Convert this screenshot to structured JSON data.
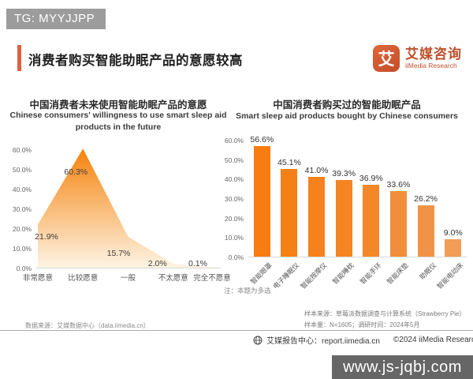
{
  "tag": {
    "label": "TG: MYYJJPP"
  },
  "header": {
    "title": "消费者购买智能助眠产品的意愿较高",
    "accent_color": "#dd6142"
  },
  "brand": {
    "icon_glyph": "艾",
    "name_cn": "艾媒咨询",
    "name_en": "iiMedia Research",
    "color": "#bf4f2c"
  },
  "chart_data": [
    {
      "type": "area",
      "title_cn": "中国消费者未来使用智能助眠产品的意愿",
      "title_en": "Chinese consumers' willingness to use smart sleep aid products in the future",
      "categories": [
        "非常愿意",
        "比较愿意",
        "一般",
        "不太愿意",
        "完全不愿意"
      ],
      "values": [
        21.9,
        60.3,
        15.7,
        2.0,
        0.1
      ],
      "value_labels": [
        "21.9%",
        "60.3%",
        "15.7%",
        "2.0%",
        "0.1%"
      ],
      "y_ticks": [
        "60.0%",
        "50.0%",
        "40.0%",
        "30.0%",
        "20.0%",
        "10.0%",
        "0.0%"
      ],
      "ylim": [
        0,
        60
      ],
      "grid": false,
      "legend": "none",
      "area_gradient_top": "#f5820c",
      "area_gradient_bottom": "#fdf4e3"
    },
    {
      "type": "bar",
      "title_cn": "中国消费者购买过的智能助眠产品",
      "title_en": "Smart sleep aid products bought by Chinese consumers",
      "categories": [
        "智能眼罩",
        "电子睡眠仪",
        "智能按摩仪",
        "智能睡枕",
        "智能手环",
        "智能床垫",
        "助眠仪",
        "智能电动床"
      ],
      "values": [
        56.6,
        45.1,
        41.0,
        39.3,
        36.9,
        33.6,
        26.2,
        9.0
      ],
      "value_labels": [
        "56.6%",
        "45.1%",
        "41.0%",
        "39.3%",
        "36.9%",
        "33.6%",
        "26.2%",
        "9.0%"
      ],
      "y_ticks": [
        "60.0%",
        "50.0%",
        "40.0%",
        "30.0%",
        "20.0%",
        "10.0%",
        "0.0%"
      ],
      "ylim": [
        0,
        60
      ],
      "grid": false,
      "legend": "none",
      "bar_colors": [
        "#f87c10",
        "#f67f16",
        "#f5821c",
        "#f58522",
        "#f48829",
        "#f18e3b",
        "#f19346",
        "#f39d56"
      ],
      "note": "注：本题为多选"
    }
  ],
  "footnotes": {
    "data_source": "数据来源：艾媒数据中心（data.iimedia.cn）",
    "sample_source": "样本来源：草莓派数据调查与计算系统（Strawberry Pie）",
    "sample_size": "样本量：N=1605；调研时间：2024年5月"
  },
  "footer": {
    "report_center": "艾媒报告中心：report.iimedia.cn",
    "copyright": "©2024 iiMedia Research Inc"
  },
  "watermark": {
    "text": "www.js-jqbj.com"
  }
}
